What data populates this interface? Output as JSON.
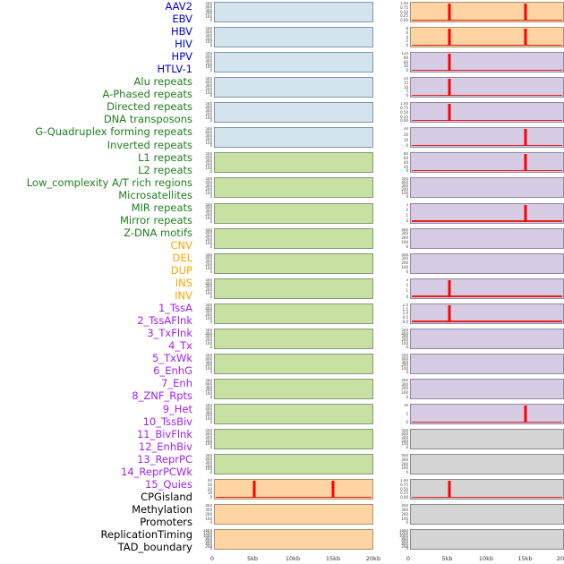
{
  "figure": {
    "title": "",
    "x_axis_ticks": [
      "0",
      "5kb",
      "10kb",
      "15kb",
      "20kb"
    ],
    "colors": {
      "virus_label": "#0000dd",
      "repeat_label": "#1f7d1f",
      "sv_label": "#ffa500",
      "chromhmm_label": "#a020f0",
      "other_label": "#000000",
      "panel_blue": "#d3e4ee",
      "panel_green": "#c8e0a1",
      "panel_orange": "#fdd4a2",
      "panel_purple": "#d5cce3",
      "panel_gray": "#d4d4d4",
      "spike_red": "#ff0000"
    }
  },
  "labels": [
    {
      "text": "AAV2",
      "group": "virus"
    },
    {
      "text": "EBV",
      "group": "virus"
    },
    {
      "text": "HBV",
      "group": "virus"
    },
    {
      "text": "HIV",
      "group": "virus"
    },
    {
      "text": "HPV",
      "group": "virus"
    },
    {
      "text": "HTLV-1",
      "group": "virus"
    },
    {
      "text": "Alu repeats",
      "group": "repeat"
    },
    {
      "text": "A-Phased repeats",
      "group": "repeat"
    },
    {
      "text": "Directed repeats",
      "group": "repeat"
    },
    {
      "text": "DNA transposons",
      "group": "repeat"
    },
    {
      "text": "G-Quadruplex forming repeats",
      "group": "repeat"
    },
    {
      "text": "Inverted repeats",
      "group": "repeat"
    },
    {
      "text": "L1 repeats",
      "group": "repeat"
    },
    {
      "text": "L2 repeats",
      "group": "repeat"
    },
    {
      "text": "Low_complexity A/T rich regions",
      "group": "repeat"
    },
    {
      "text": "Microsatellites",
      "group": "repeat"
    },
    {
      "text": "MIR repeats",
      "group": "repeat"
    },
    {
      "text": "Mirror repeats",
      "group": "repeat"
    },
    {
      "text": "Z-DNA motifs",
      "group": "repeat"
    },
    {
      "text": "CNV",
      "group": "sv"
    },
    {
      "text": "DEL",
      "group": "sv"
    },
    {
      "text": "DUP",
      "group": "sv"
    },
    {
      "text": "INS",
      "group": "sv"
    },
    {
      "text": "INV",
      "group": "sv"
    },
    {
      "text": "1_TssA",
      "group": "chromhmm"
    },
    {
      "text": "2_TssAFlnk",
      "group": "chromhmm"
    },
    {
      "text": "3_TxFlnk",
      "group": "chromhmm"
    },
    {
      "text": "4_Tx",
      "group": "chromhmm"
    },
    {
      "text": "5_TxWk",
      "group": "chromhmm"
    },
    {
      "text": "6_EnhG",
      "group": "chromhmm"
    },
    {
      "text": "7_Enh",
      "group": "chromhmm"
    },
    {
      "text": "8_ZNF_Rpts",
      "group": "chromhmm"
    },
    {
      "text": "9_Het",
      "group": "chromhmm"
    },
    {
      "text": "10_TssBiv",
      "group": "chromhmm"
    },
    {
      "text": "11_BivFlnk",
      "group": "chromhmm"
    },
    {
      "text": "12_EnhBiv",
      "group": "chromhmm"
    },
    {
      "text": "13_ReprPC",
      "group": "chromhmm"
    },
    {
      "text": "14_ReprPCWk",
      "group": "chromhmm"
    },
    {
      "text": "15_Quies",
      "group": "chromhmm"
    },
    {
      "text": "CPGisland",
      "group": "other"
    },
    {
      "text": "Methylation",
      "group": "other"
    },
    {
      "text": "Promoters",
      "group": "other"
    },
    {
      "text": "ReplicationTiming",
      "group": "other"
    },
    {
      "text": "TAD_boundary",
      "group": "other"
    }
  ],
  "chart_data": {
    "type": "line",
    "layout": "small multiples: 22 rows x 2 columns, column-major feature order; feature labels listed left",
    "x_ticks": [
      "0",
      "5kb",
      "10kb",
      "15kb",
      "20kb"
    ],
    "x_range_kb": [
      0,
      20
    ],
    "spike_positions_kb_note": "red vertical spike marks at 5kb and/or 15kb; thin red baseline near y=0 in panels with spikes",
    "panels": [
      {
        "feature": "AAV2",
        "column": "left",
        "row": 0,
        "bg": "blue",
        "yticks": [
          "500",
          "400",
          "300",
          "200",
          "100",
          "0"
        ],
        "spikes_kb": [],
        "baseline": false
      },
      {
        "feature": "EBV",
        "column": "left",
        "row": 1,
        "bg": "blue",
        "yticks": [
          "500",
          "400",
          "300",
          "200",
          "100",
          "0"
        ],
        "spikes_kb": [],
        "baseline": false
      },
      {
        "feature": "HBV",
        "column": "left",
        "row": 2,
        "bg": "blue",
        "yticks": [
          "500",
          "400",
          "300",
          "200",
          "100",
          "0"
        ],
        "spikes_kb": [],
        "baseline": false
      },
      {
        "feature": "HIV",
        "column": "left",
        "row": 3,
        "bg": "blue",
        "yticks": [
          "500",
          "400",
          "300",
          "200",
          "100",
          "0"
        ],
        "spikes_kb": [],
        "baseline": false
      },
      {
        "feature": "HPV",
        "column": "left",
        "row": 4,
        "bg": "blue",
        "yticks": [
          "500",
          "400",
          "300",
          "200",
          "100",
          "0"
        ],
        "spikes_kb": [],
        "baseline": false
      },
      {
        "feature": "HTLV-1",
        "column": "left",
        "row": 5,
        "bg": "blue",
        "yticks": [
          "500",
          "400",
          "300",
          "200",
          "100",
          "0"
        ],
        "spikes_kb": [],
        "baseline": false
      },
      {
        "feature": "Alu repeats",
        "column": "left",
        "row": 6,
        "bg": "green",
        "yticks": [
          "500",
          "400",
          "300",
          "200",
          "100",
          "0"
        ],
        "spikes_kb": [],
        "baseline": false
      },
      {
        "feature": "A-Phased repeats",
        "column": "left",
        "row": 7,
        "bg": "green",
        "yticks": [
          "500",
          "400",
          "300",
          "200",
          "100",
          "0"
        ],
        "spikes_kb": [],
        "baseline": false
      },
      {
        "feature": "Directed repeats",
        "column": "left",
        "row": 8,
        "bg": "green",
        "yticks": [
          "500",
          "400",
          "300",
          "200",
          "100",
          "0"
        ],
        "spikes_kb": [],
        "baseline": false
      },
      {
        "feature": "DNA transposons",
        "column": "left",
        "row": 9,
        "bg": "green",
        "yticks": [
          "500",
          "400",
          "300",
          "200",
          "100",
          "0"
        ],
        "spikes_kb": [],
        "baseline": false
      },
      {
        "feature": "G-Quadruplex forming repeats",
        "column": "left",
        "row": 10,
        "bg": "green",
        "yticks": [
          "500",
          "400",
          "300",
          "200",
          "100",
          "0"
        ],
        "spikes_kb": [],
        "baseline": false
      },
      {
        "feature": "Inverted repeats",
        "column": "left",
        "row": 11,
        "bg": "green",
        "yticks": [
          "500",
          "400",
          "300",
          "200",
          "100",
          "0"
        ],
        "spikes_kb": [],
        "baseline": false
      },
      {
        "feature": "L1 repeats",
        "column": "left",
        "row": 12,
        "bg": "green",
        "yticks": [
          "500",
          "400",
          "300",
          "200",
          "100",
          "0"
        ],
        "spikes_kb": [],
        "baseline": false
      },
      {
        "feature": "L2 repeats",
        "column": "left",
        "row": 13,
        "bg": "green",
        "yticks": [
          "500",
          "400",
          "300",
          "200",
          "100",
          "0"
        ],
        "spikes_kb": [],
        "baseline": false
      },
      {
        "feature": "Low_complexity A/T rich regions",
        "column": "left",
        "row": 14,
        "bg": "green",
        "yticks": [
          "500",
          "400",
          "300",
          "200",
          "100",
          "0"
        ],
        "spikes_kb": [],
        "baseline": false
      },
      {
        "feature": "Microsatellites",
        "column": "left",
        "row": 15,
        "bg": "green",
        "yticks": [
          "500",
          "400",
          "300",
          "200",
          "100",
          "0"
        ],
        "spikes_kb": [],
        "baseline": false
      },
      {
        "feature": "MIR repeats",
        "column": "left",
        "row": 16,
        "bg": "green",
        "yticks": [
          "500",
          "400",
          "300",
          "200",
          "100",
          "0"
        ],
        "spikes_kb": [],
        "baseline": false
      },
      {
        "feature": "Mirror repeats",
        "column": "left",
        "row": 17,
        "bg": "green",
        "yticks": [
          "500",
          "400",
          "300",
          "200",
          "100",
          "0"
        ],
        "spikes_kb": [],
        "baseline": false
      },
      {
        "feature": "Z-DNA motifs",
        "column": "left",
        "row": 18,
        "bg": "green",
        "yticks": [
          "500",
          "400",
          "300",
          "200",
          "100",
          "0"
        ],
        "spikes_kb": [],
        "baseline": false
      },
      {
        "feature": "CNV",
        "column": "left",
        "row": 19,
        "bg": "orange",
        "yticks": [
          "40",
          "30",
          "20",
          "10",
          "0"
        ],
        "spikes_kb": [
          5,
          15
        ],
        "baseline": true
      },
      {
        "feature": "DEL",
        "column": "left",
        "row": 20,
        "bg": "orange",
        "yticks": [
          "400",
          "300",
          "200",
          "100",
          "0"
        ],
        "spikes_kb": [],
        "baseline": false
      },
      {
        "feature": "DUP",
        "column": "left",
        "row": 21,
        "bg": "orange",
        "yticks": [
          "1400",
          "1200",
          "1000",
          "800",
          "600",
          "400",
          "200",
          "0"
        ],
        "spikes_kb": [],
        "baseline": false
      },
      {
        "feature": "INS",
        "column": "right",
        "row": 0,
        "bg": "orange",
        "yticks": [
          "1.00",
          "0.75",
          "0.50",
          "0.25",
          "0.00"
        ],
        "spikes_kb": [
          5,
          15
        ],
        "baseline": true
      },
      {
        "feature": "INV",
        "column": "right",
        "row": 1,
        "bg": "orange",
        "yticks": [
          "8",
          "6",
          "4",
          "2",
          "0"
        ],
        "spikes_kb": [
          5,
          15
        ],
        "baseline": true
      },
      {
        "feature": "1_TssA",
        "column": "right",
        "row": 2,
        "bg": "purple",
        "yticks": [
          "120",
          "90",
          "60",
          "30",
          "0"
        ],
        "spikes_kb": [
          5
        ],
        "baseline": true
      },
      {
        "feature": "2_TssAFlnk",
        "column": "right",
        "row": 3,
        "bg": "purple",
        "yticks": [
          "20",
          "15",
          "10",
          "5",
          "0"
        ],
        "spikes_kb": [
          5
        ],
        "baseline": true
      },
      {
        "feature": "3_TxFlnk",
        "column": "right",
        "row": 4,
        "bg": "purple",
        "yticks": [
          "1.00",
          "0.75",
          "0.50",
          "0.25",
          "0.00"
        ],
        "spikes_kb": [
          5
        ],
        "baseline": true
      },
      {
        "feature": "4_Tx",
        "column": "right",
        "row": 5,
        "bg": "purple",
        "yticks": [
          "30",
          "20",
          "10",
          "0"
        ],
        "spikes_kb": [
          15
        ],
        "baseline": true
      },
      {
        "feature": "5_TxWk",
        "column": "right",
        "row": 6,
        "bg": "purple",
        "yticks": [
          "80",
          "60",
          "40",
          "20",
          "0"
        ],
        "spikes_kb": [
          15
        ],
        "baseline": true
      },
      {
        "feature": "6_EnhG",
        "column": "right",
        "row": 7,
        "bg": "purple",
        "yticks": [
          "500",
          "400",
          "300",
          "200",
          "100",
          "0"
        ],
        "spikes_kb": [],
        "baseline": false
      },
      {
        "feature": "7_Enh",
        "column": "right",
        "row": 8,
        "bg": "purple",
        "yticks": [
          "3",
          "2",
          "1",
          "0"
        ],
        "spikes_kb": [
          15
        ],
        "baseline": true
      },
      {
        "feature": "8_ZNF_Rpts",
        "column": "right",
        "row": 9,
        "bg": "purple",
        "yticks": [
          "400",
          "300",
          "200",
          "100",
          "0"
        ],
        "spikes_kb": [],
        "baseline": false
      },
      {
        "feature": "9_Het",
        "column": "right",
        "row": 10,
        "bg": "purple",
        "yticks": [
          "400",
          "300",
          "200",
          "100",
          "0"
        ],
        "spikes_kb": [],
        "baseline": false
      },
      {
        "feature": "10_TssBiv",
        "column": "right",
        "row": 11,
        "bg": "purple",
        "yticks": [
          "3",
          "2",
          "1",
          "0"
        ],
        "spikes_kb": [
          5
        ],
        "baseline": true
      },
      {
        "feature": "11_BivFlnk",
        "column": "right",
        "row": 12,
        "bg": "purple",
        "yticks": [
          "2.0",
          "1.5",
          "1.0",
          "0.5",
          "0.0"
        ],
        "spikes_kb": [
          5
        ],
        "baseline": true
      },
      {
        "feature": "12_EnhBiv",
        "column": "right",
        "row": 13,
        "bg": "purple",
        "yticks": [
          "500",
          "400",
          "300",
          "200",
          "100",
          "0"
        ],
        "spikes_kb": [],
        "baseline": false
      },
      {
        "feature": "13_ReprPC",
        "column": "right",
        "row": 14,
        "bg": "purple",
        "yticks": [
          "500",
          "400",
          "300",
          "200",
          "100",
          "0"
        ],
        "spikes_kb": [],
        "baseline": false
      },
      {
        "feature": "14_ReprPCWk",
        "column": "right",
        "row": 15,
        "bg": "purple",
        "yticks": [
          "400",
          "300",
          "200",
          "100",
          "0"
        ],
        "spikes_kb": [],
        "baseline": false
      },
      {
        "feature": "15_Quies",
        "column": "right",
        "row": 16,
        "bg": "purple",
        "yticks": [
          "10",
          "5",
          "0"
        ],
        "spikes_kb": [
          15
        ],
        "baseline": true
      },
      {
        "feature": "CPGisland",
        "column": "right",
        "row": 17,
        "bg": "gray",
        "yticks": [
          "500",
          "400",
          "300",
          "200",
          "100",
          "0"
        ],
        "spikes_kb": [],
        "baseline": false
      },
      {
        "feature": "Methylation",
        "column": "right",
        "row": 18,
        "bg": "gray",
        "yticks": [
          "400",
          "300",
          "200",
          "100",
          "0"
        ],
        "spikes_kb": [],
        "baseline": false
      },
      {
        "feature": "Promoters",
        "column": "right",
        "row": 19,
        "bg": "gray",
        "yticks": [
          "1.00",
          "0.75",
          "0.50",
          "0.25",
          "0.00"
        ],
        "spikes_kb": [
          5
        ],
        "baseline": true
      },
      {
        "feature": "ReplicationTiming",
        "column": "right",
        "row": 20,
        "bg": "gray",
        "yticks": [
          "400",
          "300",
          "200",
          "100",
          "0"
        ],
        "spikes_kb": [],
        "baseline": false
      },
      {
        "feature": "TAD_boundary",
        "column": "right",
        "row": 21,
        "bg": "gray",
        "yticks": [
          "1400",
          "1200",
          "1000",
          "800",
          "600",
          "400",
          "200",
          "0"
        ],
        "spikes_kb": [],
        "baseline": false
      }
    ]
  }
}
